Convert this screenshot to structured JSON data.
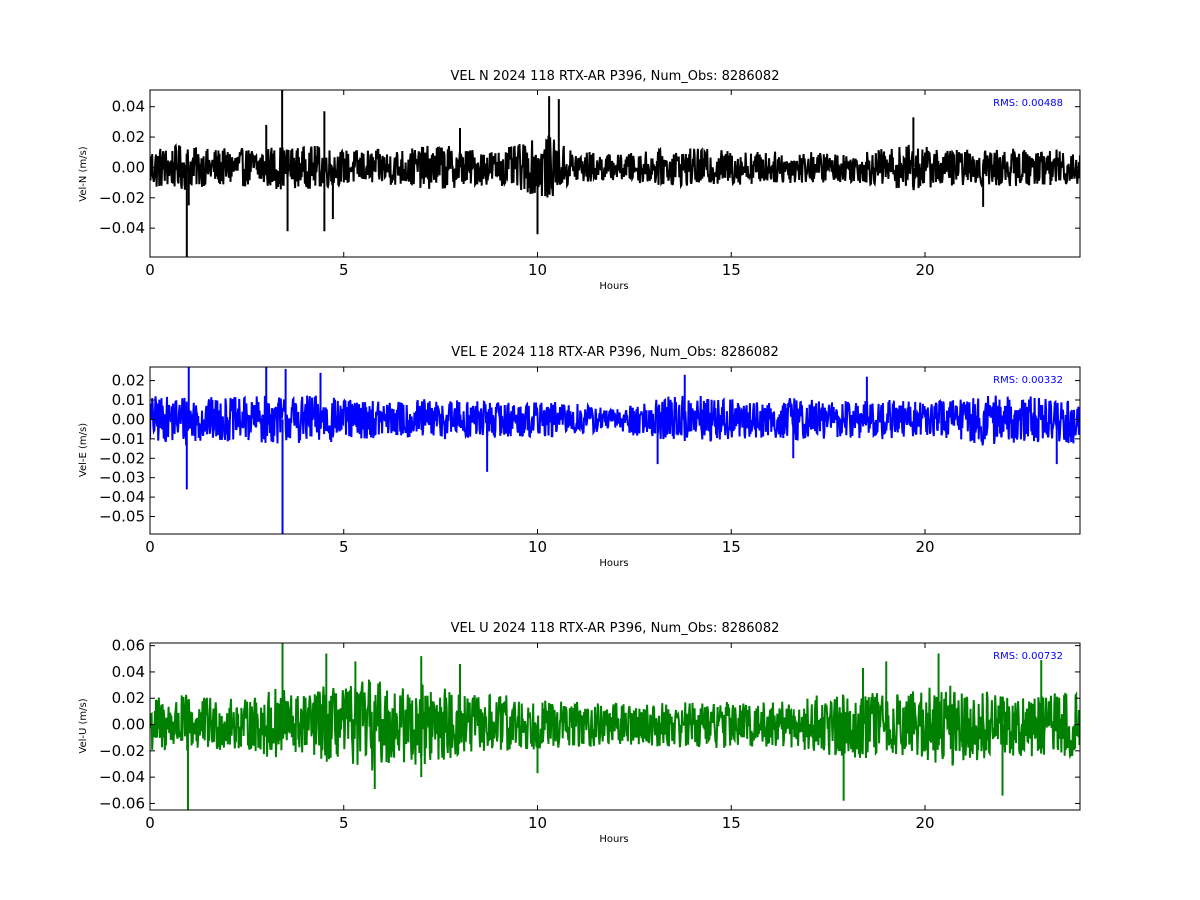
{
  "chart_data": [
    {
      "type": "line",
      "title": "VEL N 2024 118 RTX-AR  P396, Num_Obs: 8286082",
      "xlabel": "Hours",
      "ylabel": "Vel-N (m/s)",
      "xlim": [
        0,
        24
      ],
      "ylim": [
        -0.059,
        0.051
      ],
      "xticks": [
        0,
        5,
        10,
        15,
        20
      ],
      "xtick_labels": [
        "0",
        "5",
        "10",
        "15",
        "20"
      ],
      "yticks": [
        0.04,
        0.02,
        0.0,
        -0.02,
        -0.04
      ],
      "ytick_labels": [
        "0.04",
        "0.02",
        "0.00",
        "−0.02",
        "−0.04"
      ],
      "annotation": "RMS:  0.00488",
      "annotation_color": "#0000ff",
      "series_color": "#000000",
      "series": [
        {
          "x": [
            0,
            0.5,
            0.95,
            1.0,
            1.5,
            2.0,
            2.5,
            3.0,
            3.38,
            3.42,
            3.5,
            4.0,
            4.3,
            4.5,
            5.0,
            6.0,
            7.0,
            7.5,
            8.0,
            9.0,
            10.0,
            10.2,
            10.5,
            11.0,
            12.0,
            13.0,
            14.0,
            15.0,
            16.0,
            17.0,
            18.0,
            19.0,
            19.7,
            20.0,
            21.0,
            22.0,
            23.0,
            24.0
          ],
          "amp": [
            0.014,
            0.013,
            0.015,
            0.013,
            0.012,
            0.012,
            0.012,
            0.013,
            0.014,
            0.014,
            0.013,
            0.013,
            0.014,
            0.013,
            0.011,
            0.011,
            0.013,
            0.015,
            0.012,
            0.011,
            0.018,
            0.022,
            0.016,
            0.011,
            0.008,
            0.011,
            0.012,
            0.011,
            0.01,
            0.01,
            0.009,
            0.012,
            0.015,
            0.013,
            0.011,
            0.012,
            0.011,
            0.012
          ],
          "spikes": [
            {
              "x": 0.95,
              "y": -0.059
            },
            {
              "x": 3.41,
              "y": 0.051
            },
            {
              "x": 3.55,
              "y": -0.042
            },
            {
              "x": 4.5,
              "y": -0.042
            },
            {
              "x": 4.5,
              "y": 0.037
            },
            {
              "x": 4.72,
              "y": -0.034
            },
            {
              "x": 10.0,
              "y": -0.044
            },
            {
              "x": 10.3,
              "y": 0.047
            },
            {
              "x": 10.55,
              "y": 0.045
            },
            {
              "x": 3.0,
              "y": 0.028
            },
            {
              "x": 1.0,
              "y": -0.025
            },
            {
              "x": 21.5,
              "y": -0.026
            },
            {
              "x": 19.7,
              "y": 0.033
            },
            {
              "x": 8.0,
              "y": 0.026
            }
          ]
        }
      ]
    },
    {
      "type": "line",
      "title": "VEL E 2024 118 RTX-AR  P396, Num_Obs: 8286082",
      "xlabel": "Hours",
      "ylabel": "Vel-E (m/s)",
      "xlim": [
        0,
        24
      ],
      "ylim": [
        -0.059,
        0.027
      ],
      "xticks": [
        0,
        5,
        10,
        15,
        20
      ],
      "xtick_labels": [
        "0",
        "5",
        "10",
        "15",
        "20"
      ],
      "yticks": [
        0.02,
        0.01,
        0.0,
        -0.01,
        -0.02,
        -0.03,
        -0.04,
        -0.05
      ],
      "ytick_labels": [
        "0.02",
        "0.01",
        "0.00",
        "−0.01",
        "−0.02",
        "−0.03",
        "−0.04",
        "−0.05"
      ],
      "annotation": "RMS:  0.00332",
      "annotation_color": "#0000ff",
      "series_color": "#0000ff",
      "series": [
        {
          "x": [
            0,
            0.5,
            0.95,
            1.0,
            1.5,
            2.0,
            2.5,
            3.0,
            3.4,
            3.5,
            4.0,
            4.5,
            5.0,
            6.0,
            7.0,
            8.0,
            9.0,
            10.0,
            11.0,
            11.5,
            12.0,
            12.5,
            13.0,
            13.5,
            14.0,
            15.0,
            16.0,
            16.5,
            17.0,
            18.0,
            19.0,
            20.0,
            21.0,
            21.5,
            22.0,
            23.0,
            24.0
          ],
          "amp": [
            0.012,
            0.011,
            0.013,
            0.012,
            0.011,
            0.011,
            0.011,
            0.012,
            0.012,
            0.011,
            0.012,
            0.012,
            0.01,
            0.009,
            0.01,
            0.01,
            0.009,
            0.009,
            0.008,
            0.007,
            0.005,
            0.008,
            0.01,
            0.012,
            0.012,
            0.01,
            0.009,
            0.011,
            0.01,
            0.009,
            0.01,
            0.009,
            0.01,
            0.013,
            0.012,
            0.011,
            0.012
          ],
          "spikes": [
            {
              "x": 0.95,
              "y": -0.036
            },
            {
              "x": 1.0,
              "y": 0.027
            },
            {
              "x": 3.0,
              "y": 0.027
            },
            {
              "x": 3.42,
              "y": -0.059
            },
            {
              "x": 3.5,
              "y": 0.026
            },
            {
              "x": 4.4,
              "y": 0.024
            },
            {
              "x": 8.7,
              "y": -0.027
            },
            {
              "x": 13.1,
              "y": -0.023
            },
            {
              "x": 13.8,
              "y": 0.023
            },
            {
              "x": 16.6,
              "y": -0.02
            },
            {
              "x": 23.4,
              "y": -0.023
            },
            {
              "x": 18.5,
              "y": 0.022
            }
          ]
        }
      ]
    },
    {
      "type": "line",
      "title": "VEL U 2024 118 RTX-AR  P396, Num_Obs: 8286082",
      "xlabel": "Hours",
      "ylabel": "Vel-U (m/s)",
      "xlim": [
        0,
        24
      ],
      "ylim": [
        -0.065,
        0.062
      ],
      "xticks": [
        0,
        5,
        10,
        15,
        20
      ],
      "xtick_labels": [
        "0",
        "5",
        "10",
        "15",
        "20"
      ],
      "yticks": [
        0.06,
        0.04,
        0.02,
        0.0,
        -0.02,
        -0.04,
        -0.06
      ],
      "ytick_labels": [
        "0.06",
        "0.04",
        "0.02",
        "0.00",
        "−0.02",
        "−0.04",
        "−0.06"
      ],
      "annotation": "RMS:  0.00732",
      "annotation_color": "#0000ff",
      "series_color": "#008000",
      "series": [
        {
          "x": [
            0,
            0.5,
            1.0,
            1.5,
            2.0,
            2.5,
            3.0,
            3.4,
            3.5,
            4.0,
            4.5,
            5.0,
            5.5,
            5.8,
            6.0,
            6.5,
            7.0,
            7.5,
            8.0,
            9.0,
            10.0,
            11.0,
            12.0,
            13.0,
            14.0,
            15.0,
            16.0,
            17.0,
            17.5,
            18.0,
            18.5,
            19.0,
            20.0,
            20.4,
            21.0,
            22.0,
            23.0,
            24.0
          ],
          "amp": [
            0.022,
            0.02,
            0.022,
            0.02,
            0.019,
            0.018,
            0.024,
            0.028,
            0.026,
            0.022,
            0.028,
            0.026,
            0.032,
            0.035,
            0.03,
            0.028,
            0.03,
            0.028,
            0.022,
            0.022,
            0.018,
            0.017,
            0.015,
            0.016,
            0.017,
            0.017,
            0.016,
            0.019,
            0.024,
            0.024,
            0.026,
            0.022,
            0.025,
            0.032,
            0.028,
            0.022,
            0.024,
            0.023
          ],
          "spikes": [
            {
              "x": 0.98,
              "y": -0.065
            },
            {
              "x": 3.42,
              "y": 0.062
            },
            {
              "x": 4.55,
              "y": 0.054
            },
            {
              "x": 5.3,
              "y": 0.048
            },
            {
              "x": 7.0,
              "y": 0.052
            },
            {
              "x": 8.0,
              "y": 0.046
            },
            {
              "x": 5.8,
              "y": -0.049
            },
            {
              "x": 17.9,
              "y": -0.058
            },
            {
              "x": 20.35,
              "y": 0.054
            },
            {
              "x": 22.0,
              "y": -0.054
            },
            {
              "x": 23.0,
              "y": 0.049
            },
            {
              "x": 19.0,
              "y": 0.048
            },
            {
              "x": 10.0,
              "y": -0.037
            },
            {
              "x": 7.0,
              "y": -0.04
            },
            {
              "x": 18.4,
              "y": 0.043
            }
          ]
        }
      ]
    }
  ]
}
